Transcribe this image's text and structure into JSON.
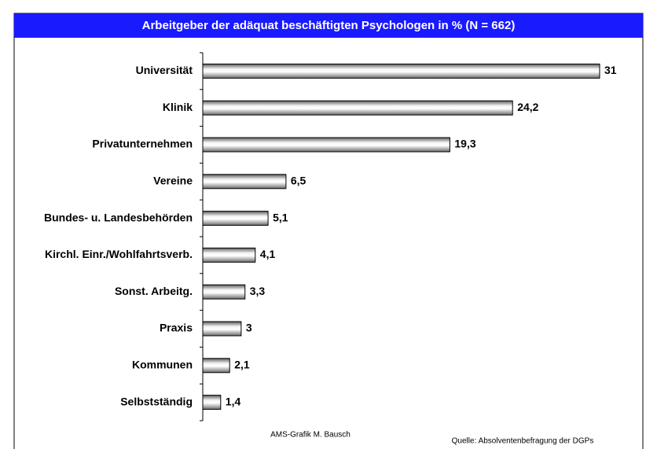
{
  "chart_data": {
    "type": "bar",
    "orientation": "horizontal",
    "title": "Arbeitgeber der adäquat beschäftigten Psychologen in % (N = 662)",
    "categories": [
      "Universität",
      "Klinik",
      "Privatunternehmen",
      "Vereine",
      "Bundes- u. Landesbehörden",
      "Kirchl. Einr./Wohlfahrtsverb.",
      "Sonst. Arbeitg.",
      "Praxis",
      "Kommunen",
      "Selbstständig"
    ],
    "values": [
      31,
      24.2,
      19.3,
      6.5,
      5.1,
      4.1,
      3.3,
      3,
      2.1,
      1.4
    ],
    "value_labels": [
      "31",
      "24,2",
      "19,3",
      "6,5",
      "5,1",
      "4,1",
      "3,3",
      "3",
      "2,1",
      "1,4"
    ],
    "color": "#c0c0c0",
    "annotations": [
      "AMS-Grafik M. Bausch",
      "Quelle: Absolventenbefragung der DGPs"
    ]
  }
}
